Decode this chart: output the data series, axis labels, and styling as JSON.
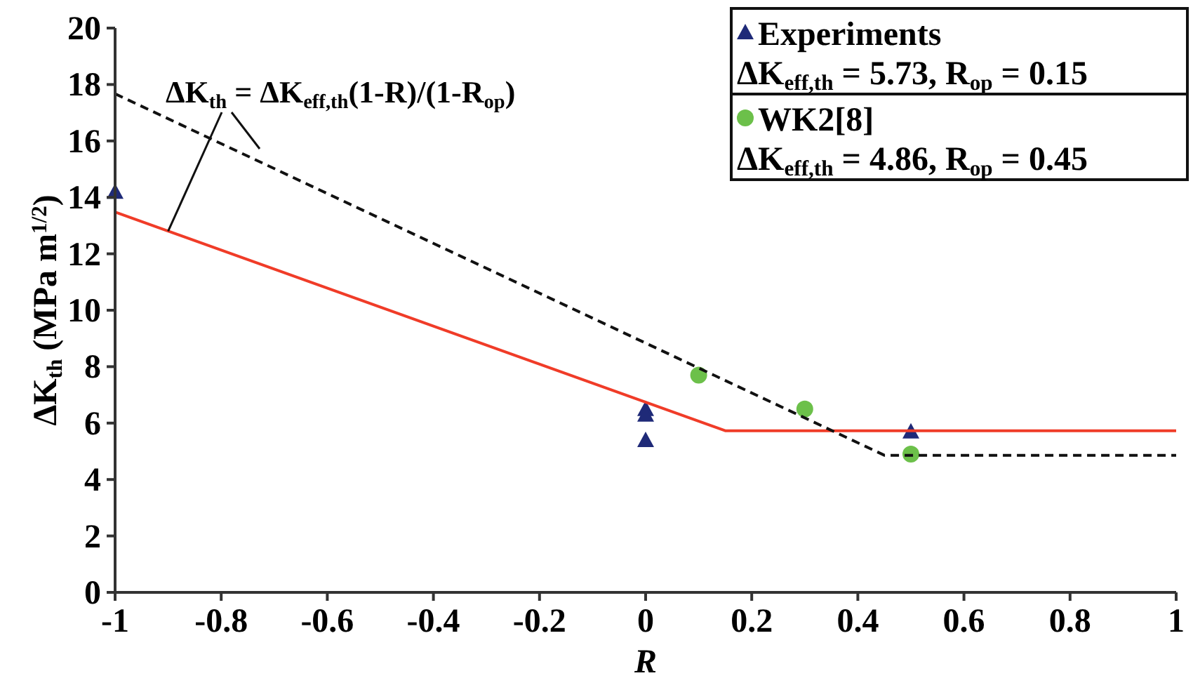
{
  "chart_data": {
    "type": "scatter",
    "xlabel": "R",
    "ylabel": "ΔK$_{th}$ (MPa m$^{1/2}$)",
    "xlim": [
      -1,
      1
    ],
    "xticks": [
      -1,
      -0.8,
      -0.6,
      -0.4,
      -0.2,
      0,
      0.2,
      0.4,
      0.6,
      0.8,
      1
    ],
    "ylim": [
      0,
      20
    ],
    "yticks": [
      0,
      2,
      4,
      6,
      8,
      10,
      12,
      14,
      16,
      18,
      20
    ],
    "grid": false,
    "legend": "top right",
    "series": [
      {
        "name": "Experiments",
        "marker": "triangle",
        "color": "#1f2a78",
        "x": [
          -1,
          0,
          0,
          0,
          0.5
        ],
        "values": [
          14.2,
          6.5,
          6.3,
          5.4,
          5.7
        ]
      },
      {
        "name": "WK2[8]",
        "marker": "circle",
        "color": "#6cc04a",
        "x": [
          0.1,
          0.3,
          0.5
        ],
        "values": [
          7.7,
          6.5,
          4.9
        ]
      },
      {
        "type": "line",
        "marker": "none",
        "line_style": "solid",
        "color": "#f03c28",
        "x": [
          -1,
          0.15,
          1
        ],
        "values": [
          13.48,
          5.73,
          5.73
        ]
      },
      {
        "type": "line",
        "marker": "none",
        "line_style": "dashed",
        "color": "#111111",
        "x": [
          -1,
          0.45,
          1
        ],
        "values": [
          17.67,
          4.86,
          4.86
        ]
      }
    ],
    "annotations": [
      {
        "text": "ΔK$_{th}$ = ΔK$_{eff,th}$(1-R)/(1-R$_{op}$)",
        "x": -0.9,
        "y": 12.8
      },
      "ΔK$_{eff,th}$ = 5.73, R$_{op}$ = 0.15",
      "ΔK$_{eff,th}$ = 4.86, R$_{op}$ = 0.45"
    ]
  }
}
